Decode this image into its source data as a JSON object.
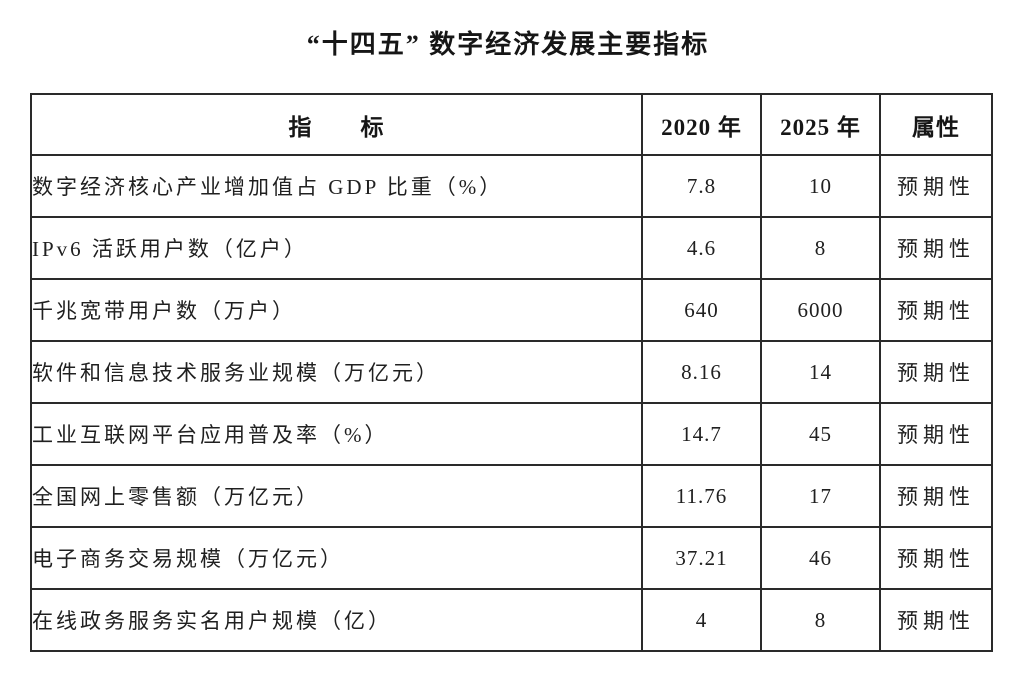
{
  "title": "“十四五” 数字经济发展主要指标",
  "table": {
    "headers": {
      "indicator": "指　　标",
      "y2020": "2020 年",
      "y2025": "2025 年",
      "attr": "属性"
    },
    "rows": [
      {
        "indicator": "数字经济核心产业增加值占 GDP 比重（%）",
        "y2020": "7.8",
        "y2025": "10",
        "attr": "预期性"
      },
      {
        "indicator": "IPv6 活跃用户数（亿户）",
        "y2020": "4.6",
        "y2025": "8",
        "attr": "预期性"
      },
      {
        "indicator": "千兆宽带用户数（万户）",
        "y2020": "640",
        "y2025": "6000",
        "attr": "预期性"
      },
      {
        "indicator": "软件和信息技术服务业规模（万亿元）",
        "y2020": "8.16",
        "y2025": "14",
        "attr": "预期性"
      },
      {
        "indicator": "工业互联网平台应用普及率（%）",
        "y2020": "14.7",
        "y2025": "45",
        "attr": "预期性"
      },
      {
        "indicator": "全国网上零售额（万亿元）",
        "y2020": "11.76",
        "y2025": "17",
        "attr": "预期性"
      },
      {
        "indicator": "电子商务交易规模（万亿元）",
        "y2020": "37.21",
        "y2025": "46",
        "attr": "预期性"
      },
      {
        "indicator": "在线政务服务实名用户规模（亿）",
        "y2020": "4",
        "y2025": "8",
        "attr": "预期性"
      }
    ]
  },
  "colors": {
    "text": "#1c1c1c",
    "border": "#2a2a2a",
    "background": "#ffffff"
  }
}
